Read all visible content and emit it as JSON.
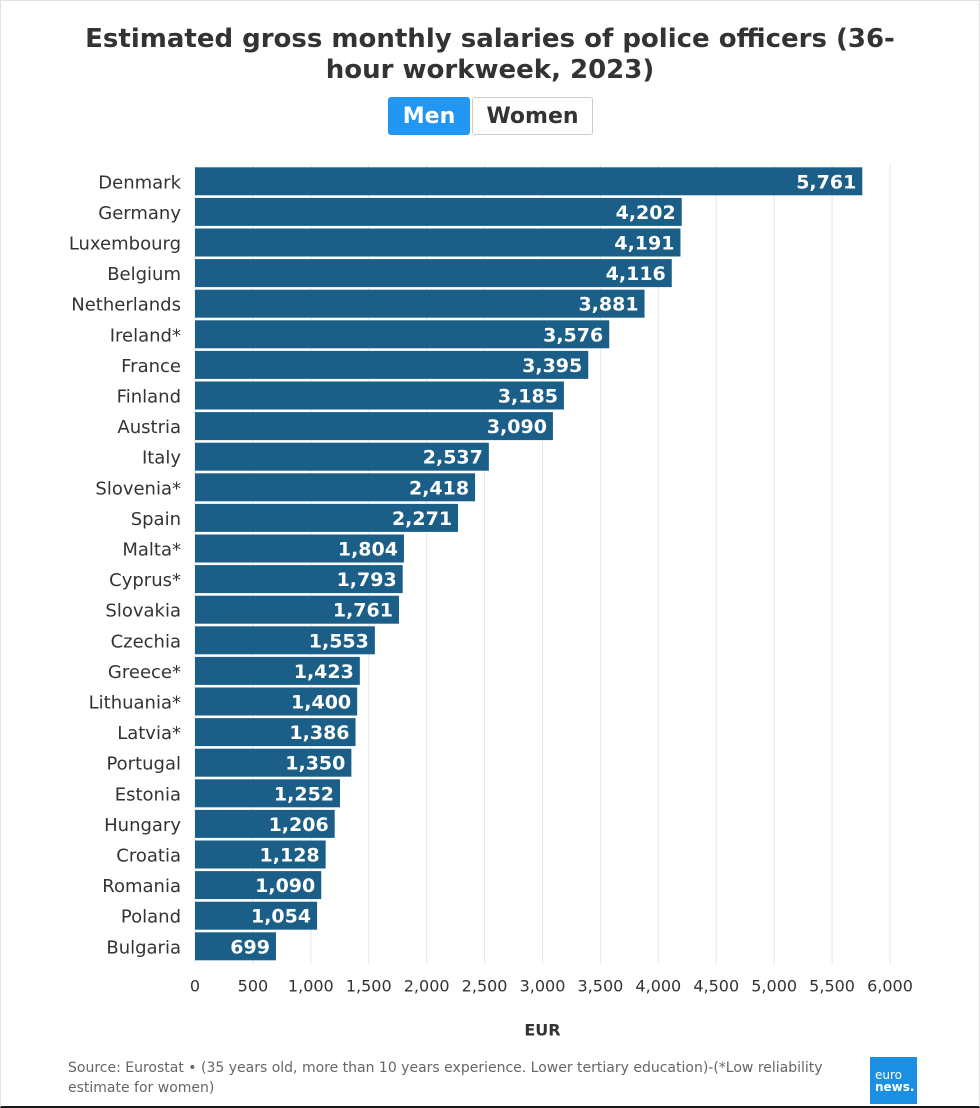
{
  "chart_data": {
    "type": "bar",
    "orientation": "horizontal",
    "title": "Estimated gross monthly salaries of police officers (36-hour workweek, 2023)",
    "toggle": {
      "active": "Men",
      "inactive": "Women"
    },
    "categories": [
      "Denmark",
      "Germany",
      "Luxembourg",
      "Belgium",
      "Netherlands",
      "Ireland*",
      "France",
      "Finland",
      "Austria",
      "Italy",
      "Slovenia*",
      "Spain",
      "Malta*",
      "Cyprus*",
      "Slovakia",
      "Czechia",
      "Greece*",
      "Lithuania*",
      "Latvia*",
      "Portugal",
      "Estonia",
      "Hungary",
      "Croatia",
      "Romania",
      "Poland",
      "Bulgaria"
    ],
    "values": [
      5761,
      4202,
      4191,
      4116,
      3881,
      3576,
      3395,
      3185,
      3090,
      2537,
      2418,
      2271,
      1804,
      1793,
      1761,
      1553,
      1423,
      1400,
      1386,
      1350,
      1252,
      1206,
      1128,
      1090,
      1054,
      699
    ],
    "value_labels": [
      "5,761",
      "4,202",
      "4,191",
      "4,116",
      "3,881",
      "3,576",
      "3,395",
      "3,185",
      "3,090",
      "2,537",
      "2,418",
      "2,271",
      "1,804",
      "1,793",
      "1,761",
      "1,553",
      "1,423",
      "1,400",
      "1,386",
      "1,350",
      "1,252",
      "1,206",
      "1,128",
      "1,090",
      "1,054",
      "699"
    ],
    "xlabel": "EUR",
    "ylabel": "",
    "xlim": [
      0,
      6000
    ],
    "ticks": [
      0,
      500,
      1000,
      1500,
      2000,
      2500,
      3000,
      3500,
      4000,
      4500,
      5000,
      5500,
      6000
    ],
    "tick_labels": [
      "0",
      "500",
      "1,000",
      "1,500",
      "2,000",
      "2,500",
      "3,000",
      "3,500",
      "4,000",
      "4,500",
      "5,000",
      "5,500",
      "6,000"
    ],
    "grid": true,
    "bar_color": "#1b5f88"
  },
  "footer": {
    "source": "Source: Eurostat • (35 years old, more than 10 years experience. Lower tertiary education)-(*Low reliability estimate for women)",
    "logo_line1": "euro",
    "logo_line2": "news."
  }
}
